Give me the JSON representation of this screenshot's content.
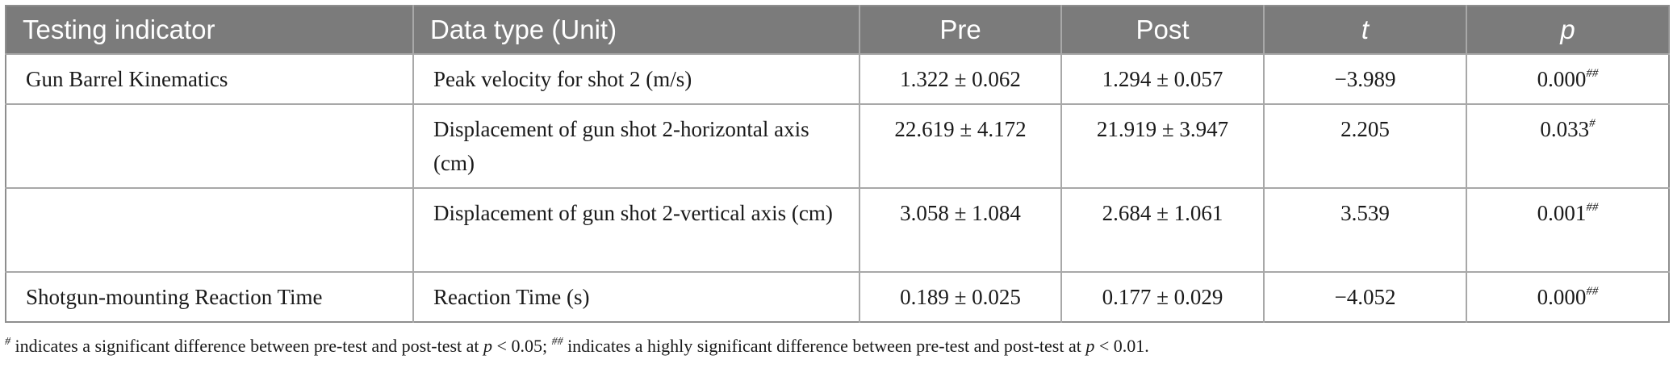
{
  "table": {
    "headers": [
      "Testing indicator",
      "Data type (Unit)",
      "Pre",
      "Post",
      "t",
      "p"
    ],
    "rows": [
      {
        "indicator": "Gun Barrel Kinematics",
        "data_type": "Peak velocity for shot 2 (m/s)",
        "pre": "1.322 ± 0.062",
        "post": "1.294 ± 0.057",
        "t": "−3.989",
        "p": "0.000",
        "p_mark": "##"
      },
      {
        "indicator": "",
        "data_type": "Displacement of gun shot 2-horizontal axis (cm)",
        "pre": "22.619 ± 4.172",
        "post": "21.919 ± 3.947",
        "t": "2.205",
        "p": "0.033",
        "p_mark": "#"
      },
      {
        "indicator": "",
        "data_type": "Displacement of gun shot 2-vertical axis (cm)",
        "pre": "3.058 ± 1.084",
        "post": "2.684 ± 1.061",
        "t": "3.539",
        "p": "0.001",
        "p_mark": "##"
      },
      {
        "indicator": "Shotgun-mounting Reaction Time",
        "data_type": "Reaction Time (s)",
        "pre": "0.189 ± 0.025",
        "post": "0.177 ± 0.029",
        "t": "−4.052",
        "p": "0.000",
        "p_mark": "##"
      }
    ]
  },
  "footnote": {
    "mark1": "#",
    "text1": " indicates a significant difference between pre-test and post-test at ",
    "p_symbol": "p",
    "threshold1": " < 0.05; ",
    "mark2": "##",
    "text2": " indicates a highly significant difference between pre-test and post-test at ",
    "threshold2": " < 0.01."
  },
  "colors": {
    "header_bg": "#7b7b7b",
    "header_text": "#ffffff",
    "border": "#a8a8a8"
  }
}
